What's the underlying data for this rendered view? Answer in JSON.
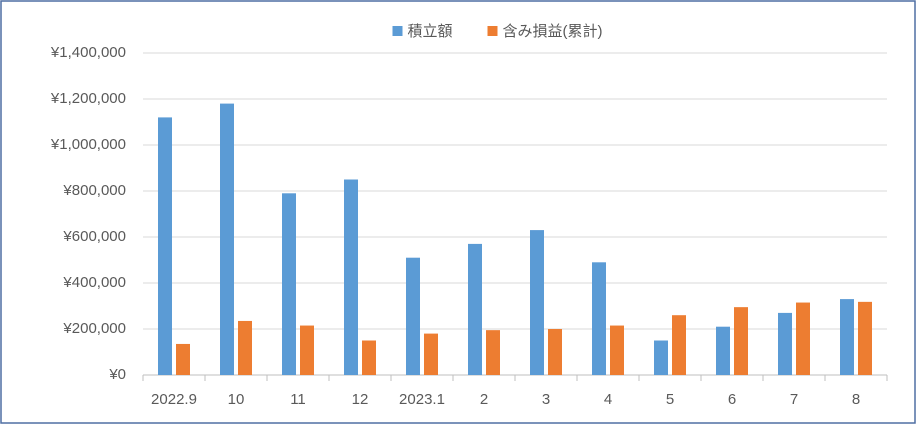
{
  "chart_data": {
    "type": "bar",
    "categories": [
      "2022.9",
      "10",
      "11",
      "12",
      "2023.1",
      "2",
      "3",
      "4",
      "5",
      "6",
      "7",
      "8"
    ],
    "series": [
      {
        "name": "積立額",
        "color": "#5b9bd5",
        "values": [
          1120000,
          1180000,
          790000,
          850000,
          510000,
          570000,
          630000,
          490000,
          150000,
          210000,
          270000,
          330000
        ]
      },
      {
        "name": "含み損益(累計)",
        "color": "#ed7d31",
        "values": [
          135000,
          235000,
          215000,
          150000,
          180000,
          195000,
          200000,
          215000,
          260000,
          295000,
          315000,
          318000
        ]
      }
    ],
    "ylim": [
      0,
      1400000
    ],
    "yticks": [
      {
        "value": 0,
        "label": "¥0"
      },
      {
        "value": 200000,
        "label": "¥200,000"
      },
      {
        "value": 400000,
        "label": "¥400,000"
      },
      {
        "value": 600000,
        "label": "¥600,000"
      },
      {
        "value": 800000,
        "label": "¥800,000"
      },
      {
        "value": 1000000,
        "label": "¥1,000,000"
      },
      {
        "value": 1200000,
        "label": "¥1,200,000"
      },
      {
        "value": 1400000,
        "label": "¥1,400,000"
      }
    ],
    "grid": true,
    "legend": "top"
  }
}
